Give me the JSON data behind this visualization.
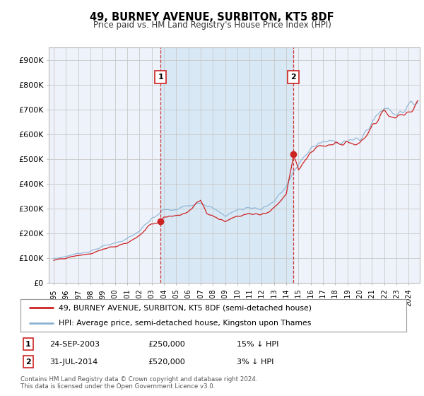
{
  "title": "49, BURNEY AVENUE, SURBITON, KT5 8DF",
  "subtitle": "Price paid vs. HM Land Registry's House Price Index (HPI)",
  "ylim": [
    0,
    950000
  ],
  "yticks": [
    0,
    100000,
    200000,
    300000,
    400000,
    500000,
    600000,
    700000,
    800000,
    900000
  ],
  "ytick_labels": [
    "£0",
    "£100K",
    "£200K",
    "£300K",
    "£400K",
    "£500K",
    "£600K",
    "£700K",
    "£800K",
    "£900K"
  ],
  "xlim_start": 1994.6,
  "xlim_end": 2024.9,
  "sale1_date": "24-SEP-2003",
  "sale1_price": 250000,
  "sale1_pct": "15% ↓ HPI",
  "sale1_year": 2003.73,
  "sale2_date": "31-JUL-2014",
  "sale2_price": 520000,
  "sale2_pct": "3% ↓ HPI",
  "sale2_year": 2014.58,
  "hpi_color": "#8ab4d4",
  "price_color": "#cc2222",
  "vline_color": "#cc2222",
  "bg_color": "#ffffff",
  "plot_bg_color": "#eef2fa",
  "shade_color": "#d8e8f5",
  "legend_label_price": "49, BURNEY AVENUE, SURBITON, KT5 8DF (semi-detached house)",
  "legend_label_hpi": "HPI: Average price, semi-detached house, Kingston upon Thames",
  "footnote": "Contains HM Land Registry data © Crown copyright and database right 2024.\nThis data is licensed under the Open Government Licence v3.0."
}
